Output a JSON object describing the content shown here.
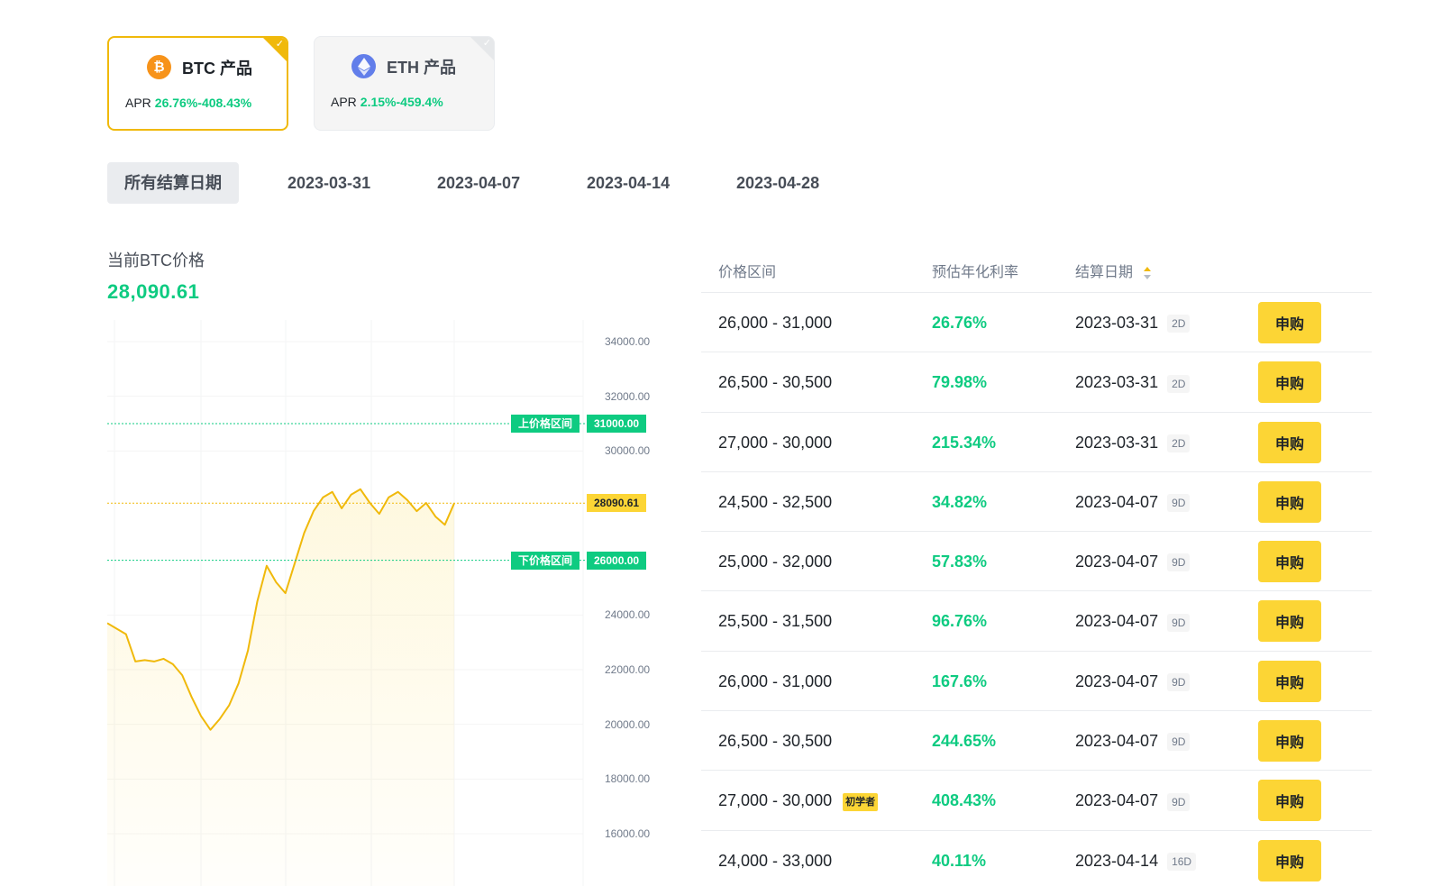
{
  "products": [
    {
      "title": "BTC 产品",
      "apr_label": "APR",
      "apr_value": "26.76%-408.43%",
      "icon": "bitcoin-icon",
      "active": true
    },
    {
      "title": "ETH 产品",
      "apr_label": "APR",
      "apr_value": "2.15%-459.4%",
      "icon": "ethereum-icon",
      "active": false
    }
  ],
  "date_tabs": [
    "所有结算日期",
    "2023-03-31",
    "2023-04-07",
    "2023-04-14",
    "2023-04-28"
  ],
  "current_price": {
    "label": "当前BTC价格",
    "value": "28,090.61"
  },
  "chart_labels": {
    "upper_band_label": "上价格区间",
    "upper_band_value": "31000.00",
    "lower_band_label": "下价格区间",
    "lower_band_value": "26000.00",
    "current_value": "28090.61"
  },
  "chart_data": {
    "type": "line",
    "y_ticks": [
      "34000.00",
      "32000.00",
      "30000.00",
      "24000.00",
      "22000.00",
      "20000.00",
      "18000.00",
      "16000.00"
    ],
    "ylim": [
      15000,
      35000
    ],
    "upper_band": 31000,
    "lower_band": 26000,
    "current": 28090.61,
    "series": [
      {
        "values": [
          23700,
          23500,
          23300,
          22300,
          22350,
          22300,
          22400,
          22200,
          21800,
          21000,
          20300,
          19800,
          20200,
          20700,
          21500,
          22700,
          24500,
          25800,
          25200,
          24800,
          25900,
          27000,
          27800,
          28300,
          28500,
          27900,
          28400,
          28600,
          28100,
          27700,
          28300,
          28500,
          28200,
          27800,
          28100,
          27600,
          27300,
          28090
        ]
      }
    ]
  },
  "table": {
    "headers": {
      "range": "价格区间",
      "apr": "预估年化利率",
      "date": "结算日期"
    },
    "buy_label": "申购",
    "newbie_label": "初学者",
    "rows": [
      {
        "range": "26,000 - 31,000",
        "apr": "26.76%",
        "date": "2023-03-31",
        "days": "2D"
      },
      {
        "range": "26,500 - 30,500",
        "apr": "79.98%",
        "date": "2023-03-31",
        "days": "2D"
      },
      {
        "range": "27,000 - 30,000",
        "apr": "215.34%",
        "date": "2023-03-31",
        "days": "2D"
      },
      {
        "range": "24,500 - 32,500",
        "apr": "34.82%",
        "date": "2023-04-07",
        "days": "9D"
      },
      {
        "range": "25,000 - 32,000",
        "apr": "57.83%",
        "date": "2023-04-07",
        "days": "9D"
      },
      {
        "range": "25,500 - 31,500",
        "apr": "96.76%",
        "date": "2023-04-07",
        "days": "9D"
      },
      {
        "range": "26,000 - 31,000",
        "apr": "167.6%",
        "date": "2023-04-07",
        "days": "9D"
      },
      {
        "range": "26,500 - 30,500",
        "apr": "244.65%",
        "date": "2023-04-07",
        "days": "9D"
      },
      {
        "range": "27,000 - 30,000",
        "apr": "408.43%",
        "date": "2023-04-07",
        "days": "9D",
        "newbie": true
      },
      {
        "range": "24,000 - 33,000",
        "apr": "40.11%",
        "date": "2023-04-14",
        "days": "16D"
      }
    ]
  },
  "colors": {
    "accent": "#f0b90b",
    "button": "#fcd535",
    "positive": "#0ecb81",
    "btc": "#f7931a",
    "eth": "#627eea"
  }
}
